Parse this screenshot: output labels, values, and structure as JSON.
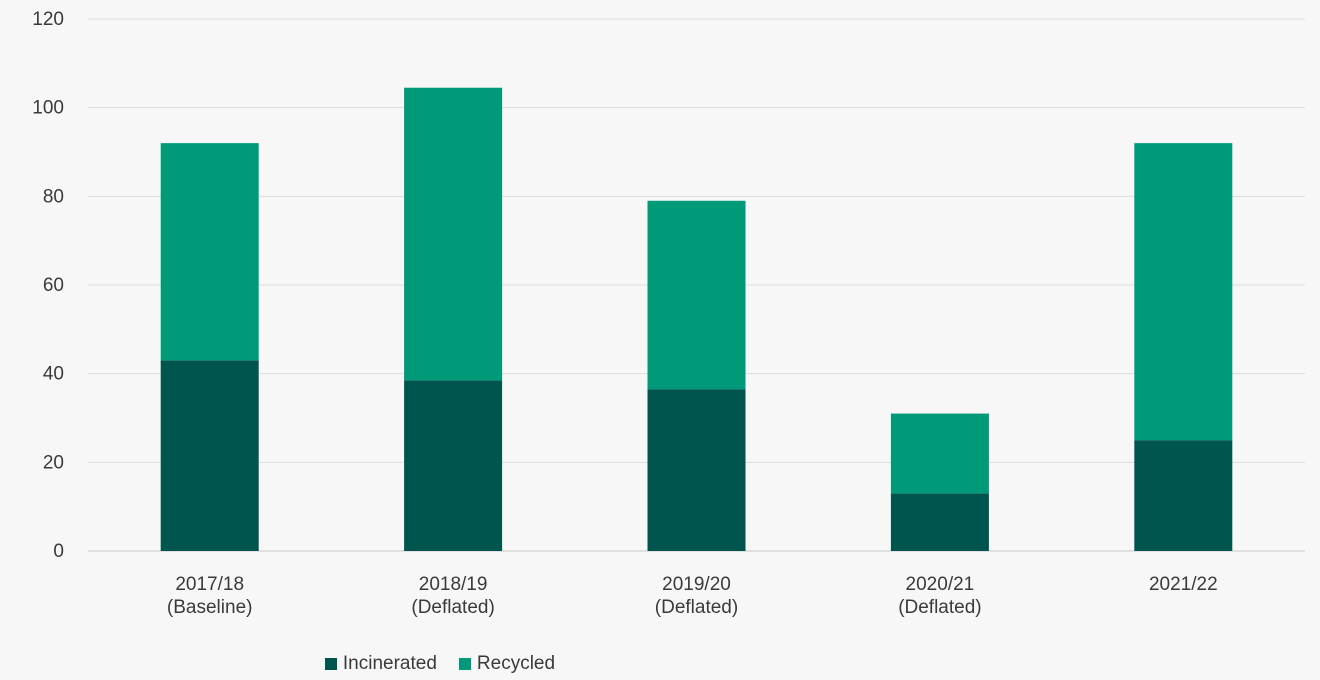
{
  "chart_data": {
    "type": "bar",
    "stacked": true,
    "title": "",
    "xlabel": "",
    "ylabel": "",
    "ylim": [
      0,
      120
    ],
    "yticks": [
      0,
      20,
      40,
      60,
      80,
      100,
      120
    ],
    "grid": true,
    "legend_position": "bottom",
    "categories": [
      [
        "2017/18",
        "(Baseline)"
      ],
      [
        "2018/19",
        "(Deflated)"
      ],
      [
        "2019/20",
        "(Deflated)"
      ],
      [
        "2020/21",
        "(Deflated)"
      ],
      [
        "2021/22"
      ]
    ],
    "series": [
      {
        "name": "Incinerated",
        "color": "#00564f",
        "values": [
          43,
          38.5,
          36.5,
          13,
          25
        ]
      },
      {
        "name": "Recycled",
        "color": "#009a78",
        "values": [
          49,
          66,
          42.5,
          18,
          67
        ]
      }
    ]
  }
}
